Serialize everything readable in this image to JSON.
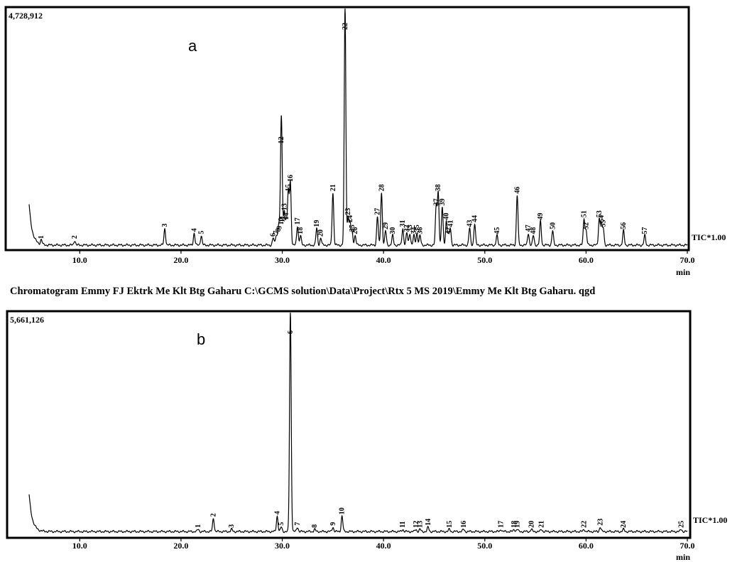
{
  "caption": "Chromatogram Emmy FJ Ektrk Me Klt Btg Gaharu C:\\GCMS solution\\Data\\Project\\Rtx 5 MS 2019\\Emmy Me Klt Btg Gaharu. qgd",
  "chart_data": [
    {
      "type": "line",
      "panel_label": "a",
      "max_intensity_label": "4,728,912",
      "trace_label": "TIC*1.00",
      "xlabel": "min",
      "xlim": [
        5.0,
        70.0
      ],
      "ylim": [
        0,
        4728912
      ],
      "xticks": [
        "10.0",
        "20.0",
        "30.0",
        "40.0",
        "50.0",
        "60.0",
        "70.0"
      ],
      "peaks": [
        {
          "label": "1",
          "rt": 6.2,
          "h": 0.02
        },
        {
          "label": "2",
          "rt": 9.5,
          "h": 0.02
        },
        {
          "label": "3",
          "rt": 18.4,
          "h": 0.07
        },
        {
          "label": "4",
          "rt": 21.3,
          "h": 0.05
        },
        {
          "label": "5",
          "rt": 22.0,
          "h": 0.04
        },
        {
          "label": "6",
          "rt": 29.1,
          "h": 0.03
        },
        {
          "label": "7",
          "rt": 29.4,
          "h": 0.04
        },
        {
          "label": "8",
          "rt": 29.6,
          "h": 0.05
        },
        {
          "label": "9",
          "rt": 29.7,
          "h": 0.06
        },
        {
          "label": "10",
          "rt": 29.9,
          "h": 0.08
        },
        {
          "label": "11",
          "rt": 30.0,
          "h": 0.09
        },
        {
          "label": "12",
          "rt": 29.9,
          "h": 0.42
        },
        {
          "label": "13",
          "rt": 30.2,
          "h": 0.14
        },
        {
          "label": "14",
          "rt": 30.4,
          "h": 0.1
        },
        {
          "label": "15",
          "rt": 30.6,
          "h": 0.22
        },
        {
          "label": "16",
          "rt": 30.8,
          "h": 0.26
        },
        {
          "label": "17",
          "rt": 31.5,
          "h": 0.08
        },
        {
          "label": "18",
          "rt": 31.8,
          "h": 0.04
        },
        {
          "label": "19",
          "rt": 33.4,
          "h": 0.07
        },
        {
          "label": "20",
          "rt": 33.8,
          "h": 0.03
        },
        {
          "label": "21",
          "rt": 35.0,
          "h": 0.22
        },
        {
          "label": "22",
          "rt": 36.2,
          "h": 1.0
        },
        {
          "label": "23",
          "rt": 36.5,
          "h": 0.12
        },
        {
          "label": "24",
          "rt": 36.7,
          "h": 0.09
        },
        {
          "label": "25",
          "rt": 36.9,
          "h": 0.05
        },
        {
          "label": "26",
          "rt": 37.2,
          "h": 0.04
        },
        {
          "label": "27",
          "rt": 39.4,
          "h": 0.12
        },
        {
          "label": "28",
          "rt": 39.8,
          "h": 0.22
        },
        {
          "label": "29",
          "rt": 40.2,
          "h": 0.06
        },
        {
          "label": "30",
          "rt": 40.9,
          "h": 0.04
        },
        {
          "label": "31",
          "rt": 41.9,
          "h": 0.07
        },
        {
          "label": "32",
          "rt": 42.3,
          "h": 0.05
        },
        {
          "label": "33",
          "rt": 42.6,
          "h": 0.05
        },
        {
          "label": "34",
          "rt": 43.0,
          "h": 0.04
        },
        {
          "label": "35",
          "rt": 43.3,
          "h": 0.05
        },
        {
          "label": "36",
          "rt": 43.6,
          "h": 0.04
        },
        {
          "label": "37",
          "rt": 45.2,
          "h": 0.16
        },
        {
          "label": "38",
          "rt": 45.4,
          "h": 0.22
        },
        {
          "label": "39",
          "rt": 45.8,
          "h": 0.16
        },
        {
          "label": "40",
          "rt": 46.2,
          "h": 0.1
        },
        {
          "label": "41",
          "rt": 46.6,
          "h": 0.07
        },
        {
          "label": "42",
          "rt": 46.4,
          "h": 0.04
        },
        {
          "label": "43",
          "rt": 48.5,
          "h": 0.07
        },
        {
          "label": "44",
          "rt": 49.0,
          "h": 0.09
        },
        {
          "label": "45",
          "rt": 51.2,
          "h": 0.04
        },
        {
          "label": "46",
          "rt": 53.2,
          "h": 0.21
        },
        {
          "label": "47",
          "rt": 54.3,
          "h": 0.05
        },
        {
          "label": "48",
          "rt": 54.8,
          "h": 0.04
        },
        {
          "label": "49",
          "rt": 55.5,
          "h": 0.1
        },
        {
          "label": "50",
          "rt": 56.7,
          "h": 0.06
        },
        {
          "label": "51",
          "rt": 59.8,
          "h": 0.11
        },
        {
          "label": "52",
          "rt": 60.0,
          "h": 0.06
        },
        {
          "label": "53",
          "rt": 61.3,
          "h": 0.11
        },
        {
          "label": "54",
          "rt": 61.5,
          "h": 0.09
        },
        {
          "label": "55",
          "rt": 61.7,
          "h": 0.07
        },
        {
          "label": "56",
          "rt": 63.7,
          "h": 0.06
        },
        {
          "label": "57",
          "rt": 65.8,
          "h": 0.04
        }
      ]
    },
    {
      "type": "line",
      "panel_label": "b",
      "max_intensity_label": "5,661,126",
      "trace_label": "TIC*1.00",
      "xlabel": "min",
      "xlim": [
        5.0,
        70.0
      ],
      "ylim": [
        0,
        5661126
      ],
      "xticks": [
        "10.0",
        "20.0",
        "30.0",
        "40.0",
        "50.0",
        "60.0",
        "70.0"
      ],
      "peaks": [
        {
          "label": "1",
          "rt": 21.7,
          "h": 0.01
        },
        {
          "label": "2",
          "rt": 23.2,
          "h": 0.06
        },
        {
          "label": "3",
          "rt": 25.0,
          "h": 0.01
        },
        {
          "label": "4",
          "rt": 29.5,
          "h": 0.07
        },
        {
          "label": "5",
          "rt": 29.9,
          "h": 0.02
        },
        {
          "label": "6",
          "rt": 30.8,
          "h": 1.0
        },
        {
          "label": "7",
          "rt": 31.5,
          "h": 0.02
        },
        {
          "label": "8",
          "rt": 33.2,
          "h": 0.01
        },
        {
          "label": "9",
          "rt": 35.0,
          "h": 0.02
        },
        {
          "label": "10",
          "rt": 35.9,
          "h": 0.07
        },
        {
          "label": "11",
          "rt": 41.9,
          "h": 0.01
        },
        {
          "label": "12",
          "rt": 43.2,
          "h": 0.01
        },
        {
          "label": "13",
          "rt": 43.6,
          "h": 0.01
        },
        {
          "label": "14",
          "rt": 44.4,
          "h": 0.02
        },
        {
          "label": "15",
          "rt": 46.5,
          "h": 0.01
        },
        {
          "label": "16",
          "rt": 47.9,
          "h": 0.01
        },
        {
          "label": "17",
          "rt": 51.6,
          "h": 0.01
        },
        {
          "label": "18",
          "rt": 52.9,
          "h": 0.01
        },
        {
          "label": "19",
          "rt": 53.2,
          "h": 0.01
        },
        {
          "label": "20",
          "rt": 54.6,
          "h": 0.01
        },
        {
          "label": "21",
          "rt": 55.6,
          "h": 0.01
        },
        {
          "label": "22",
          "rt": 59.8,
          "h": 0.01
        },
        {
          "label": "23",
          "rt": 61.4,
          "h": 0.02
        },
        {
          "label": "24",
          "rt": 63.7,
          "h": 0.01
        },
        {
          "label": "25",
          "rt": 69.4,
          "h": 0.01
        }
      ]
    }
  ]
}
